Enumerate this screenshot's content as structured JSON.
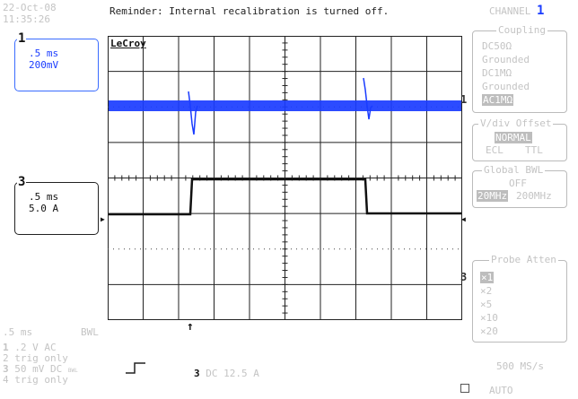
{
  "header": {
    "date": "22-Oct-08",
    "time": "11:35:26",
    "reminder": "Reminder: Internal recalibration is turned off.",
    "channel_label": "CHANNEL",
    "channel_num": "1"
  },
  "trace1": {
    "num": "1",
    "time": ".5 ms",
    "scale": "200mV"
  },
  "trace3": {
    "num": "3",
    "time": ".5 ms",
    "scale": "5.0 A"
  },
  "screen": {
    "logo": "LeCroy",
    "ch1_marker": "1",
    "ch3_marker": "3"
  },
  "coupling": {
    "title": "Coupling",
    "options": [
      "DC50Ω",
      "Grounded",
      "DC1MΩ",
      "Grounded",
      "AC1MΩ"
    ]
  },
  "vdiv": {
    "title": "V/div Offset",
    "normal": "NORMAL",
    "ecl": "ECL",
    "ttl": "TTL"
  },
  "bwl": {
    "title": "Global BWL",
    "off": "OFF",
    "opt1": "20MHz",
    "opt2": "200MHz"
  },
  "probe": {
    "title": "Probe Atten",
    "options": [
      "×1",
      "×2",
      "×5",
      "×10",
      "×20"
    ]
  },
  "bottom": {
    "timebase": ".5 ms",
    "bwl": "BWL",
    "ch1": {
      "num": "1",
      "text": ".2  V  AC"
    },
    "ch2": {
      "num": "2",
      "text": "trig only"
    },
    "ch3": {
      "num": "3",
      "text": "50 mV  DC",
      "sub": "BWL"
    },
    "ch4": {
      "num": "4",
      "text": "trig only"
    },
    "trig_src": "3",
    "trig_text": "DC 12.5 A",
    "rate": "500 MS/s",
    "mode": "AUTO"
  },
  "colors": {
    "ch1": "#1a3cff",
    "ch3": "#111111",
    "faint": "#c4c4c4"
  }
}
